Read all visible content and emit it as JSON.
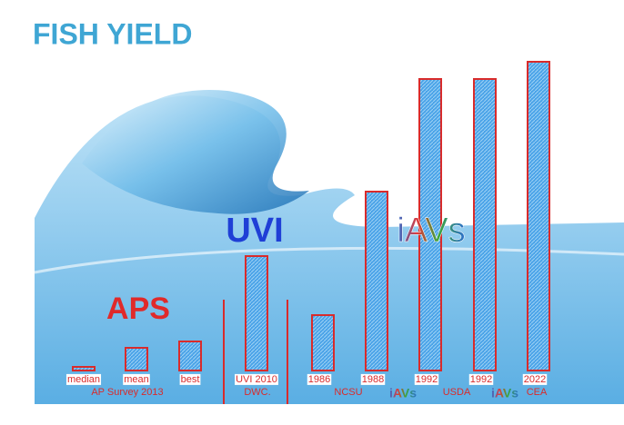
{
  "chart_data": {
    "type": "bar",
    "title": "FISH YIELD",
    "categories": [
      "median",
      "mean",
      "best",
      "UVI 2010",
      "1986",
      "1988",
      "1992",
      "1992",
      "2022"
    ],
    "values": [
      4,
      25,
      32,
      126,
      61,
      197,
      321,
      321,
      340
    ],
    "ylim": [
      0,
      350
    ],
    "color": "#4aa3e8",
    "edge_color": "#d92b2b",
    "group_labels": [
      "AP Survey 2013",
      "DWC.",
      "NCSU",
      "USDA",
      "CEA"
    ],
    "system_labels": [
      "APS",
      "UVI",
      "iAVs"
    ],
    "system_tags": [
      "iAVs",
      "iAVs"
    ]
  }
}
